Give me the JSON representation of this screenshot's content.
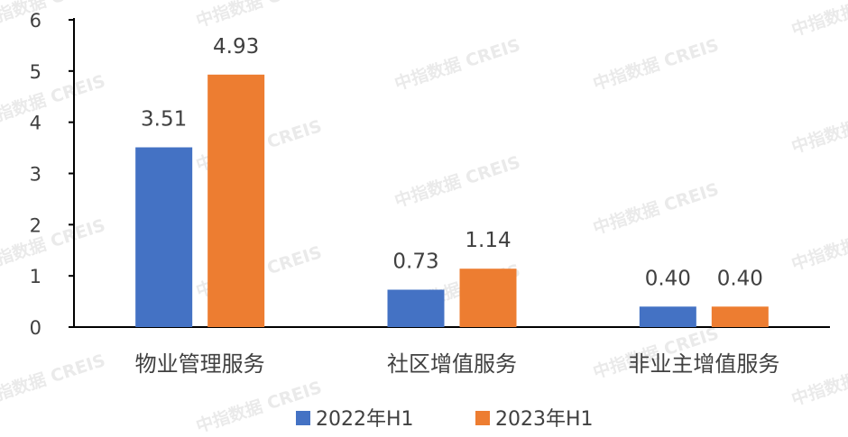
{
  "chart_data": {
    "type": "bar",
    "categories": [
      "物业管理服务",
      "社区增值服务",
      "非业主增值服务"
    ],
    "series": [
      {
        "name": "2022年H1",
        "color": "#4472C4",
        "values": [
          3.51,
          0.73,
          0.4
        ],
        "labels": [
          "3.51",
          "0.73",
          "0.40"
        ]
      },
      {
        "name": "2023年H1",
        "color": "#ED7D31",
        "values": [
          4.93,
          1.14,
          0.4
        ],
        "labels": [
          "4.93",
          "1.14",
          "0.40"
        ]
      }
    ],
    "ylim": [
      0,
      6
    ],
    "yticks": [
      "0",
      "1",
      "2",
      "3",
      "4",
      "5",
      "6"
    ],
    "grid": false,
    "legend": "bottom"
  },
  "watermark": "中指数据 CREIS"
}
